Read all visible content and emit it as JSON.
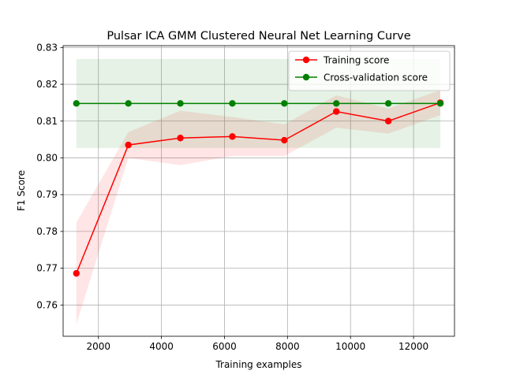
{
  "chart_data": {
    "type": "line",
    "title": "Pulsar ICA GMM Clustered Neural Net Learning Curve",
    "xlabel": "Training examples",
    "ylabel": "F1 Score",
    "xlim": [
      880,
      13300
    ],
    "ylim": [
      0.7515,
      0.8305
    ],
    "xticks": [
      2000,
      4000,
      6000,
      8000,
      10000,
      12000
    ],
    "yticks": [
      0.76,
      0.77,
      0.78,
      0.79,
      0.8,
      0.81,
      0.82,
      0.83
    ],
    "xtick_labels": [
      "2000",
      "4000",
      "6000",
      "8000",
      "10000",
      "12000"
    ],
    "ytick_labels": [
      "0.76",
      "0.77",
      "0.78",
      "0.79",
      "0.80",
      "0.81",
      "0.82",
      "0.83"
    ],
    "grid": true,
    "legend_position": "upper-right",
    "x": [
      1300,
      2950,
      4600,
      6250,
      7900,
      9550,
      11200,
      12850
    ],
    "series": [
      {
        "name": "Training score",
        "color": "#ff0000",
        "values": [
          0.7686,
          0.8035,
          0.8054,
          0.8058,
          0.8048,
          0.8126,
          0.81,
          0.815
        ],
        "band_lower": [
          0.7548,
          0.8,
          0.798,
          0.8005,
          0.8005,
          0.8082,
          0.8066,
          0.8116
        ],
        "band_upper": [
          0.7824,
          0.807,
          0.8128,
          0.8111,
          0.8091,
          0.817,
          0.8134,
          0.8184
        ],
        "band_color": "#ff0000"
      },
      {
        "name": "Cross-validation score",
        "color": "#008000",
        "values": [
          0.8148,
          0.8148,
          0.8148,
          0.8148,
          0.8148,
          0.8148,
          0.8148,
          0.8148
        ],
        "band_lower": [
          0.8027,
          0.8027,
          0.8027,
          0.8027,
          0.8027,
          0.8027,
          0.8027,
          0.8027
        ],
        "band_upper": [
          0.8269,
          0.8269,
          0.8269,
          0.8269,
          0.8269,
          0.8269,
          0.8269,
          0.8269
        ],
        "band_color": "#008000"
      }
    ]
  }
}
